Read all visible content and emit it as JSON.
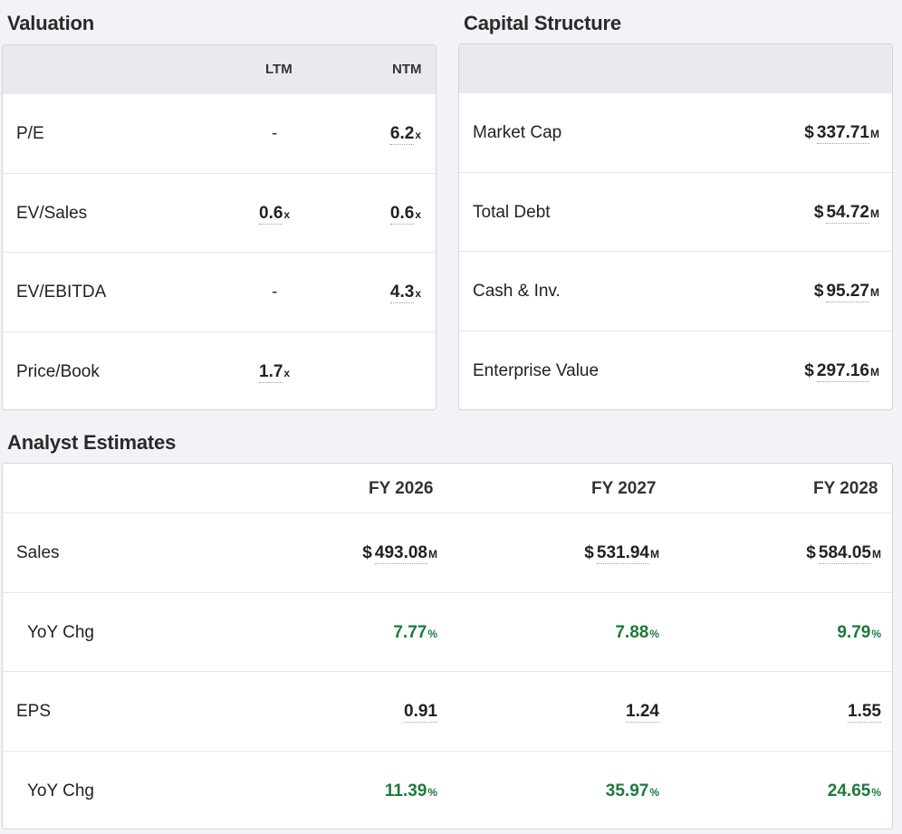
{
  "valuation": {
    "title": "Valuation",
    "headers": [
      "LTM",
      "NTM"
    ],
    "rows": [
      {
        "label": "P/E",
        "ltm": "-",
        "ltm_suffix": "",
        "ntm": "6.2",
        "ntm_suffix": "x"
      },
      {
        "label": "EV/Sales",
        "ltm": "0.6",
        "ltm_suffix": "x",
        "ntm": "0.6",
        "ntm_suffix": "x"
      },
      {
        "label": "EV/EBITDA",
        "ltm": "-",
        "ltm_suffix": "",
        "ntm": "4.3",
        "ntm_suffix": "x"
      },
      {
        "label": "Price/Book",
        "ltm": "1.7",
        "ltm_suffix": "x",
        "ntm": "",
        "ntm_suffix": ""
      }
    ]
  },
  "capital": {
    "title": "Capital Structure",
    "rows": [
      {
        "label": "Market Cap",
        "currency": "$",
        "value": "337.71",
        "suffix": "M"
      },
      {
        "label": "Total Debt",
        "currency": "$",
        "value": "54.72",
        "suffix": "M"
      },
      {
        "label": "Cash & Inv.",
        "currency": "$",
        "value": "95.27",
        "suffix": "M"
      },
      {
        "label": "Enterprise Value",
        "currency": "$",
        "value": "297.16",
        "suffix": "M"
      }
    ]
  },
  "estimates": {
    "title": "Analyst Estimates",
    "headers": [
      "FY 2026",
      "FY 2027",
      "FY 2028"
    ],
    "rows": [
      {
        "label": "Sales",
        "type": "money",
        "values": [
          {
            "currency": "$",
            "value": "493.08",
            "suffix": "M"
          },
          {
            "currency": "$",
            "value": "531.94",
            "suffix": "M"
          },
          {
            "currency": "$",
            "value": "584.05",
            "suffix": "M"
          }
        ]
      },
      {
        "label": "YoY Chg",
        "type": "pct",
        "values": [
          {
            "currency": "",
            "value": "7.77",
            "suffix": "%"
          },
          {
            "currency": "",
            "value": "7.88",
            "suffix": "%"
          },
          {
            "currency": "",
            "value": "9.79",
            "suffix": "%"
          }
        ]
      },
      {
        "label": "EPS",
        "type": "plain",
        "values": [
          {
            "currency": "",
            "value": "0.91",
            "suffix": ""
          },
          {
            "currency": "",
            "value": "1.24",
            "suffix": ""
          },
          {
            "currency": "",
            "value": "1.55",
            "suffix": ""
          }
        ]
      },
      {
        "label": "YoY Chg",
        "type": "pct",
        "values": [
          {
            "currency": "",
            "value": "11.39",
            "suffix": "%"
          },
          {
            "currency": "",
            "value": "35.97",
            "suffix": "%"
          },
          {
            "currency": "",
            "value": "24.65",
            "suffix": "%"
          }
        ]
      }
    ]
  },
  "colors": {
    "positive": "#1d7a3c",
    "header_bg": "#e9eaed",
    "page_bg": "#f2f3f7"
  }
}
